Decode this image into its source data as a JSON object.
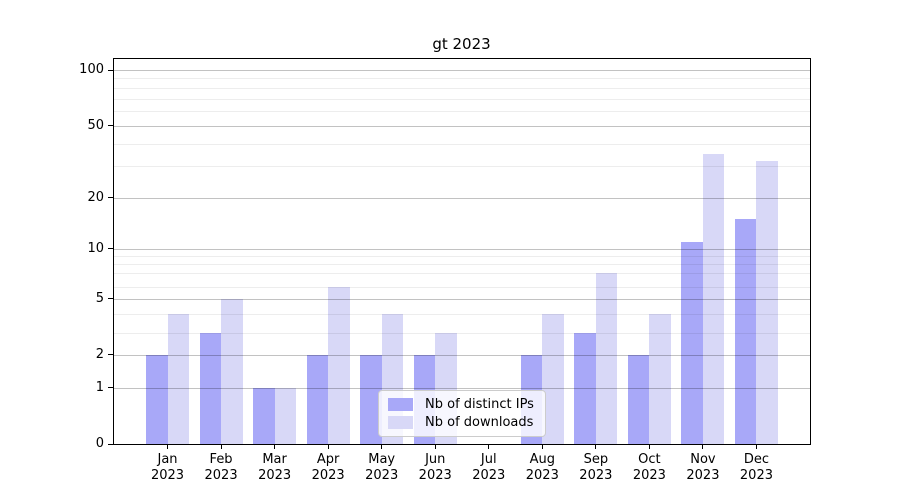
{
  "chart_data": {
    "type": "bar",
    "title": "gt 2023",
    "categories": [
      "Jan",
      "Feb",
      "Mar",
      "Apr",
      "May",
      "Jun",
      "Jul",
      "Aug",
      "Sep",
      "Oct",
      "Nov",
      "Dec"
    ],
    "x_tick_second_line": "2023",
    "series": [
      {
        "name": "Nb of distinct IPs",
        "color": "#a8a8f8",
        "values": [
          2,
          3,
          1,
          2,
          2,
          2,
          0,
          2,
          3,
          2,
          11,
          15
        ]
      },
      {
        "name": "Nb of downloads",
        "color": "#d8d8f7",
        "values": [
          4,
          5,
          1,
          6,
          4,
          3,
          0,
          4,
          7,
          4,
          35,
          32
        ]
      }
    ],
    "xlabel": "",
    "ylabel": "",
    "yscale": "asinh",
    "ylim": [
      0,
      113
    ],
    "y_major_ticks": [
      0,
      1,
      2,
      5,
      10,
      20,
      50,
      100
    ],
    "y_minor_ticks": [
      3,
      4,
      6,
      7,
      8,
      9,
      30,
      40,
      60,
      70,
      80,
      90
    ],
    "grid": "horizontal, major and minor",
    "legend_position": "lower center",
    "scale_anchors": [
      [
        0,
        0
      ],
      [
        1,
        0.1455
      ],
      [
        2,
        0.2312
      ],
      [
        3,
        0.2883
      ],
      [
        4,
        0.3369
      ],
      [
        5,
        0.3779
      ],
      [
        6,
        0.4086
      ],
      [
        7,
        0.4434
      ],
      [
        8,
        0.467
      ],
      [
        9,
        0.4878
      ],
      [
        10,
        0.5065
      ],
      [
        20,
        0.639
      ],
      [
        30,
        0.7216
      ],
      [
        40,
        0.7805
      ],
      [
        50,
        0.826
      ],
      [
        60,
        0.8642
      ],
      [
        70,
        0.8966
      ],
      [
        80,
        0.9247
      ],
      [
        90,
        0.9494
      ],
      [
        100,
        0.9714
      ]
    ]
  },
  "colors": {
    "background": "#ffffff",
    "bar_distinct_ips": "#a8a8f8",
    "bar_downloads": "#d8d8f7",
    "major_grid": "rgba(0,0,0,0.24)",
    "minor_grid": "rgba(0,0,0,0.07)",
    "axis": "#000000",
    "text": "#000000",
    "legend_bg": "rgba(255,255,255,0.8)",
    "legend_border": "#cccccc"
  }
}
